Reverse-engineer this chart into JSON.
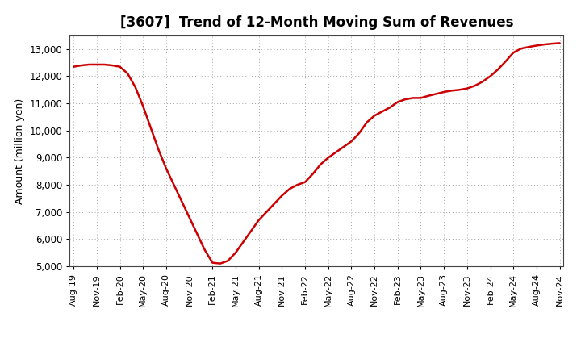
{
  "title": "[3607]  Trend of 12-Month Moving Sum of Revenues",
  "ylabel": "Amount (million yen)",
  "line_color": "#cc0000",
  "background_color": "#ffffff",
  "plot_bg_color": "#ffffff",
  "grid_color": "#999999",
  "ylim": [
    5000,
    13500
  ],
  "yticks": [
    5000,
    6000,
    7000,
    8000,
    9000,
    10000,
    11000,
    12000,
    13000
  ],
  "values": [
    12350,
    12400,
    12430,
    12430,
    12430,
    12400,
    12350,
    12100,
    11600,
    10900,
    10100,
    9300,
    8600,
    8000,
    7400,
    6800,
    6200,
    5600,
    5130,
    5100,
    5200,
    5500,
    5900,
    6300,
    6700,
    7000,
    7300,
    7600,
    7850,
    8000,
    8100,
    8400,
    8750,
    9000,
    9200,
    9400,
    9600,
    9900,
    10300,
    10550,
    10700,
    10850,
    11050,
    11150,
    11200,
    11200,
    11280,
    11350,
    11420,
    11470,
    11500,
    11550,
    11650,
    11800,
    12000,
    12250,
    12550,
    12870,
    13020,
    13080,
    13130,
    13170,
    13200,
    13220
  ],
  "xtick_labels": [
    "Aug-19",
    "Nov-19",
    "Feb-20",
    "May-20",
    "Aug-20",
    "Nov-20",
    "Feb-21",
    "May-21",
    "Aug-21",
    "Nov-21",
    "Feb-22",
    "May-22",
    "Aug-22",
    "Nov-22",
    "Feb-23",
    "May-23",
    "Aug-23",
    "Nov-23",
    "Feb-24",
    "May-24",
    "Aug-24",
    "Nov-24"
  ],
  "xtick_positions": [
    0,
    3,
    6,
    9,
    12,
    15,
    18,
    21,
    24,
    27,
    30,
    33,
    36,
    39,
    42,
    45,
    48,
    51,
    54,
    57,
    60,
    63
  ],
  "title_fontsize": 12,
  "ylabel_fontsize": 9,
  "ytick_fontsize": 8.5,
  "xtick_fontsize": 8
}
